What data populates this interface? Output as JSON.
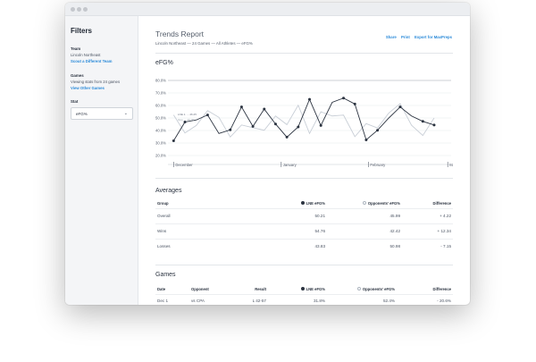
{
  "window": {
    "dots": [
      "#c4c7cc",
      "#c4c7cc",
      "#c4c7cc"
    ]
  },
  "sidebar": {
    "title": "Filters",
    "team": {
      "heading": "Team",
      "value": "Lincoln Northeast",
      "link": "Scout a Different Team"
    },
    "games": {
      "heading": "Games",
      "value": "Viewing stats from 24 games",
      "link": "View Other Games"
    },
    "stat": {
      "heading": "Stat",
      "selected": "eFG%",
      "chevron_icon": "chevron-down-icon"
    }
  },
  "header": {
    "title": "Trends Report",
    "subtitle": "Lincoln Northeast — 24 Games — All Athletes — eFG%",
    "actions": {
      "share": "Share",
      "print": "Print",
      "export": "Export for MaxPreps"
    }
  },
  "chart": {
    "title": "eFG%"
  },
  "chart_data": {
    "type": "line",
    "ylim": [
      20,
      80
    ],
    "y_ticks": [
      "20.0%",
      "30.0%",
      "40.0%",
      "50.0%",
      "60.0%",
      "70.0%",
      "80.0%"
    ],
    "x_ticks": [
      {
        "label": "December",
        "x": 0
      },
      {
        "label": "January",
        "x": 9.5
      },
      {
        "label": "February",
        "x": 17.2
      },
      {
        "label": "March",
        "x": 24.2
      }
    ],
    "xlim": [
      -0.5,
      24.5
    ],
    "tooltip": {
      "line1": "LNE 1. ... 46.25",
      "line2": "Opp. ... 45.00"
    },
    "series": [
      {
        "name": "LNE eFG%",
        "color": "#2b3340",
        "values": [
          31.8,
          46.8,
          48.4,
          52.4,
          37.6,
          40.5,
          58.8,
          43.3,
          57.1,
          45.2,
          34.7,
          42.9,
          64.9,
          44.0,
          62.5,
          65.9,
          61.2,
          32.5,
          40.2,
          50.0,
          58.8,
          51.6,
          47.3,
          44.4
        ],
        "markers": [
          true,
          true,
          false,
          true,
          false,
          true,
          true,
          true,
          true,
          true,
          true,
          true,
          true,
          true,
          false,
          true,
          true,
          true,
          true,
          false,
          true,
          false,
          true,
          true
        ]
      },
      {
        "name": "Opponents' eFG%",
        "color": "#c8ced6",
        "values": [
          52.4,
          38.0,
          44.0,
          55.9,
          50.5,
          34.8,
          44.4,
          42.3,
          40.2,
          51.6,
          44.7,
          60.2,
          37.6,
          55.0,
          51.6,
          52.3,
          35.1,
          45.5,
          42.0,
          54.0,
          61.5,
          44.2,
          36.0,
          50.0
        ]
      }
    ]
  },
  "averages": {
    "title": "Averages",
    "headers": [
      "Group",
      "LNE eFG%",
      "Opponents' eFG%",
      "Difference"
    ],
    "rows": [
      [
        "Overall",
        "50.21",
        "45.99",
        "+ 4.22"
      ],
      [
        "Wins",
        "54.76",
        "42.42",
        "+ 12.34"
      ],
      [
        "Losses",
        "43.83",
        "50.98",
        "- 7.15"
      ]
    ]
  },
  "games": {
    "title": "Games",
    "headers": [
      "Date",
      "Opponent",
      "Result",
      "LNE eFG%",
      "Opponents' eFG%",
      "Difference"
    ],
    "rows": [
      [
        "Dec 1",
        "vs CPA",
        "L 42-57",
        "31.8%",
        "52.4%",
        "- 20.6%"
      ]
    ]
  }
}
